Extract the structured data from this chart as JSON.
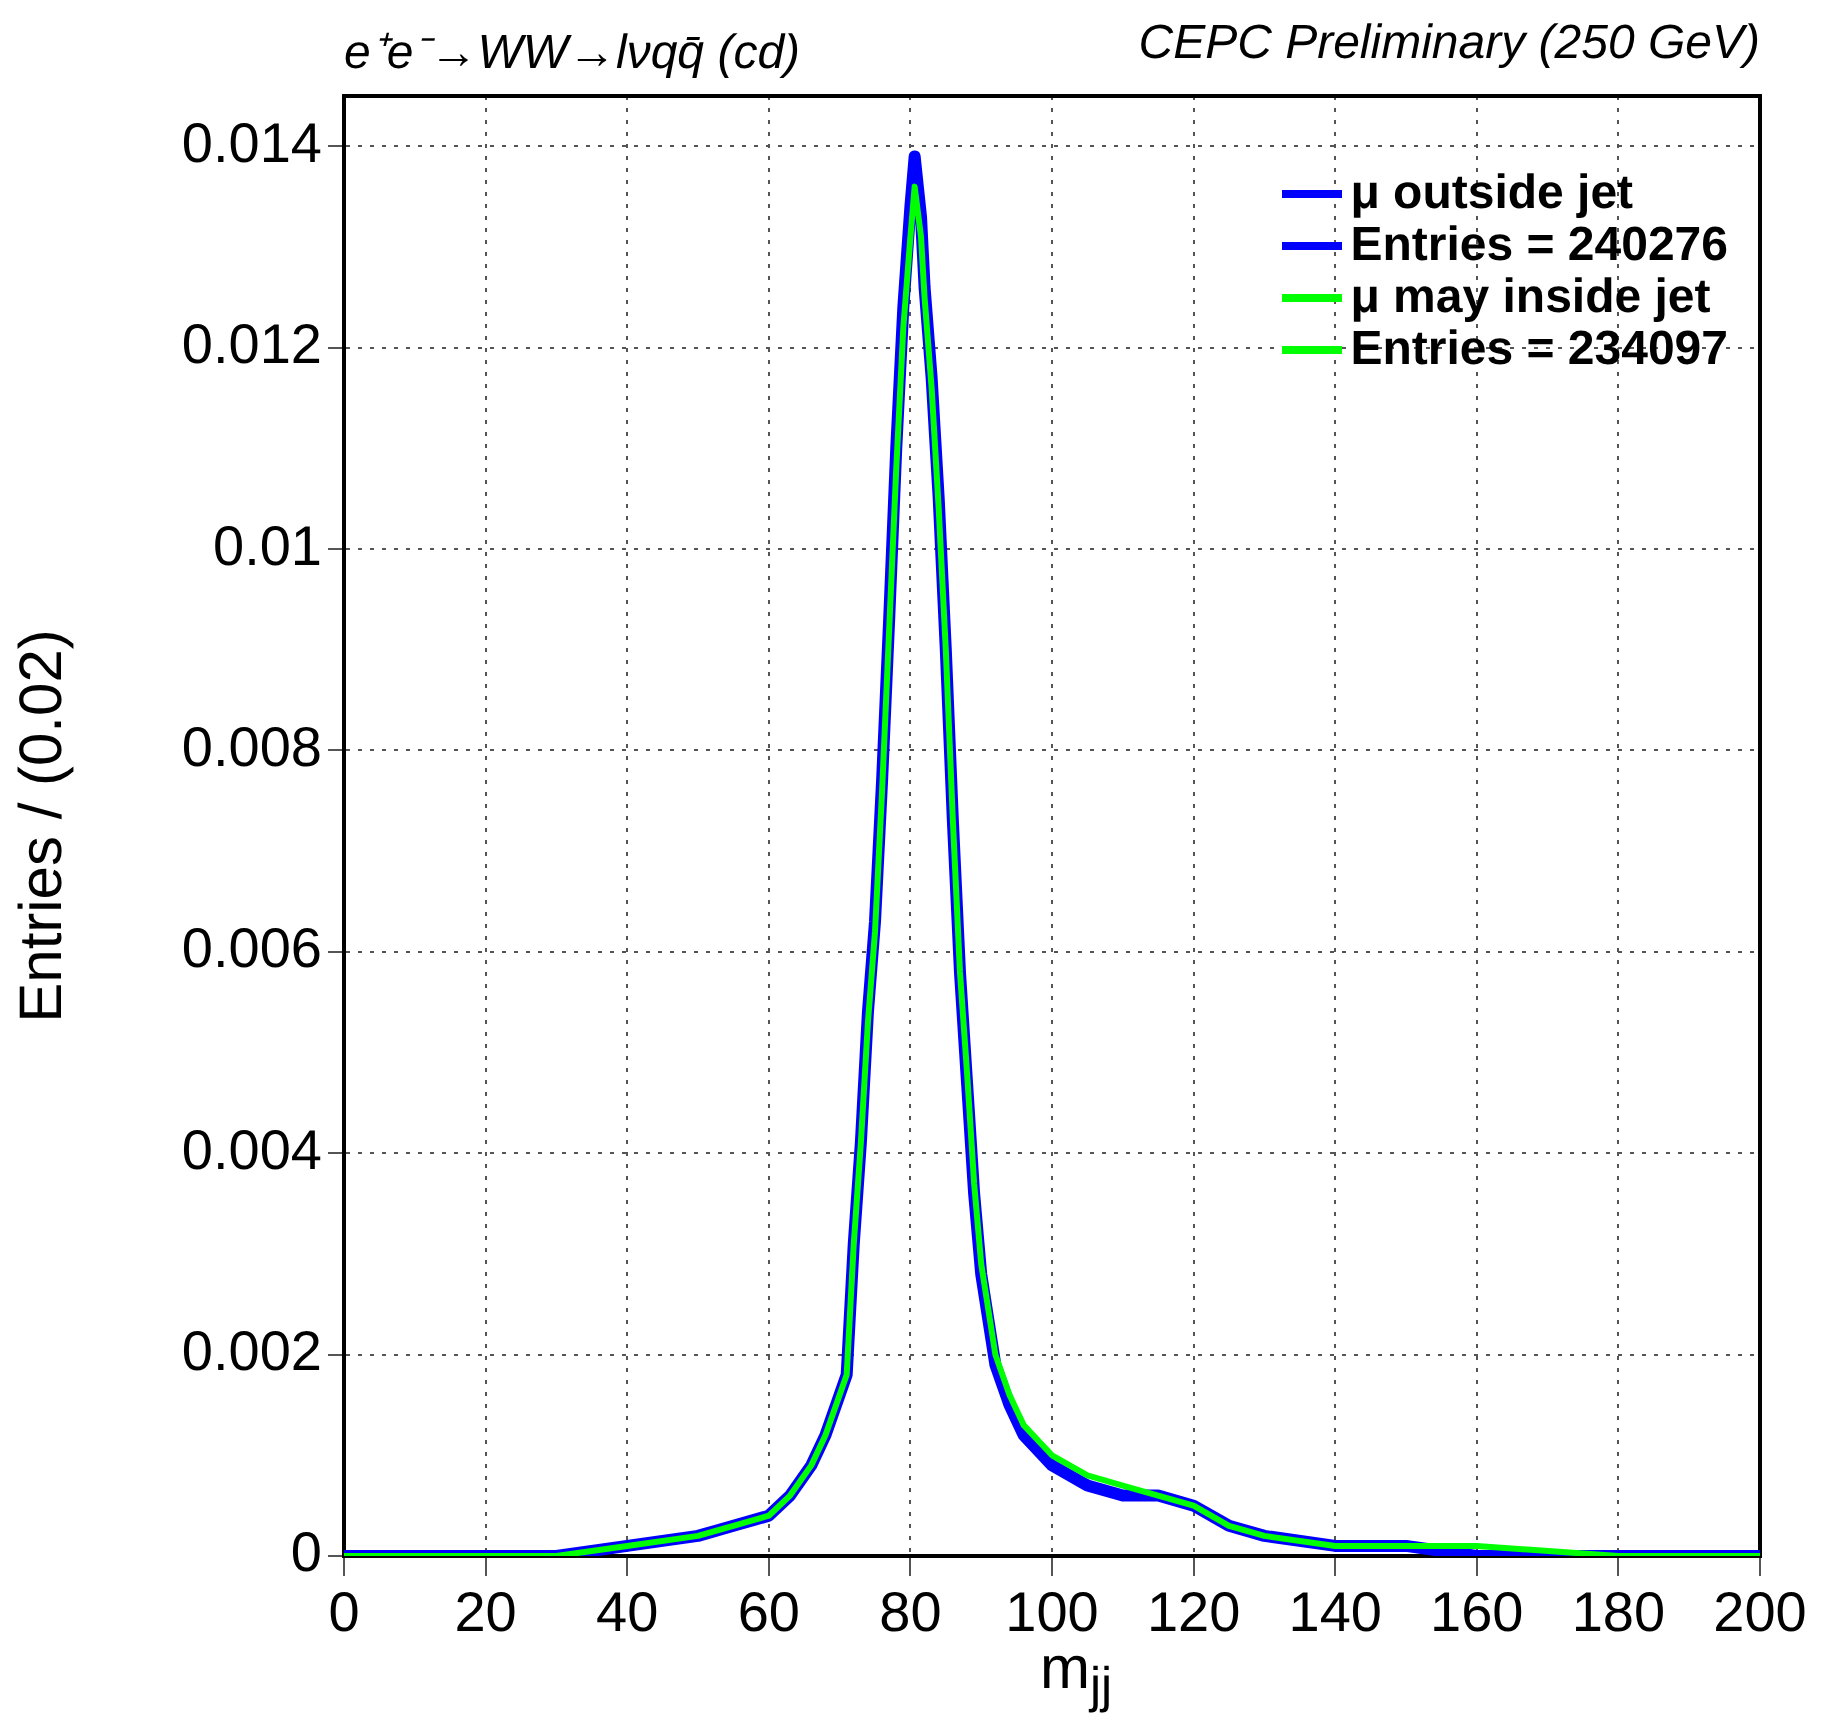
{
  "chart_data": {
    "type": "line",
    "title": "e⁺e⁻→WW→lνqq̄ (cd)",
    "subtitle": "CEPC Preliminary (250 GeV)",
    "xlabel": "m$_{jj}$",
    "ylabel": "Entries / (0.02)",
    "xlim": [
      0,
      200
    ],
    "xticks": [
      0,
      20,
      40,
      60,
      80,
      100,
      120,
      140,
      160,
      180,
      200
    ],
    "ylim": [
      0,
      0.0145
    ],
    "yticks": [
      0,
      0.002,
      0.004,
      0.006,
      0.008,
      0.01,
      0.012,
      0.014
    ],
    "grid": true,
    "legend": "top right",
    "marker": "none",
    "line_style": "solid",
    "annotations": [
      "Entries = 240276",
      "Entries = 234097"
    ],
    "series": [
      {
        "name": "μ outside jet",
        "color": "#0000ff",
        "x": [
          0,
          20,
          30,
          40,
          50,
          55,
          60,
          63,
          66,
          68,
          70,
          71,
          72,
          73,
          74,
          75,
          76,
          77,
          78,
          79,
          80,
          80.6,
          81.5,
          82,
          83,
          84,
          85,
          86,
          87,
          88,
          89,
          90,
          92,
          94,
          96,
          100,
          105,
          110,
          115,
          120,
          125,
          130,
          140,
          150,
          160,
          180,
          200
        ],
        "values": [
          0,
          0,
          0,
          0.0001,
          0.0002,
          0.0003,
          0.0004,
          0.0006,
          0.0009,
          0.0012,
          0.0016,
          0.0018,
          0.0031,
          0.0041,
          0.0054,
          0.0063,
          0.0077,
          0.0093,
          0.011,
          0.0124,
          0.0134,
          0.0139,
          0.0133,
          0.0126,
          0.0117,
          0.0105,
          0.009,
          0.0073,
          0.0058,
          0.0047,
          0.0036,
          0.0028,
          0.0019,
          0.0015,
          0.0012,
          0.0009,
          0.0007,
          0.0006,
          0.0006,
          0.0005,
          0.0003,
          0.0002,
          0.0001,
          0.0001,
          0,
          0,
          0
        ]
      },
      {
        "name": "μ may inside jet",
        "color": "#00ff00",
        "x": [
          0,
          20,
          30,
          40,
          50,
          55,
          60,
          63,
          66,
          68,
          70,
          71,
          72,
          73,
          74,
          75,
          76,
          77,
          78,
          79,
          80,
          80.6,
          81.5,
          82,
          83,
          84,
          85,
          86,
          87,
          88,
          89,
          90,
          92,
          94,
          96,
          100,
          105,
          110,
          115,
          120,
          125,
          130,
          140,
          150,
          160,
          180,
          200
        ],
        "values": [
          0,
          0,
          0,
          0.0001,
          0.0002,
          0.0003,
          0.0004,
          0.0006,
          0.0009,
          0.0012,
          0.0016,
          0.0018,
          0.0031,
          0.0041,
          0.0053,
          0.0062,
          0.0076,
          0.0092,
          0.0108,
          0.0122,
          0.0131,
          0.0136,
          0.0131,
          0.0125,
          0.0116,
          0.0104,
          0.009,
          0.0073,
          0.0058,
          0.0048,
          0.0037,
          0.0029,
          0.002,
          0.0016,
          0.0013,
          0.001,
          0.0008,
          0.0007,
          0.0006,
          0.0005,
          0.0003,
          0.0002,
          0.0001,
          0.0001,
          0.0001,
          0,
          0
        ]
      }
    ]
  }
}
